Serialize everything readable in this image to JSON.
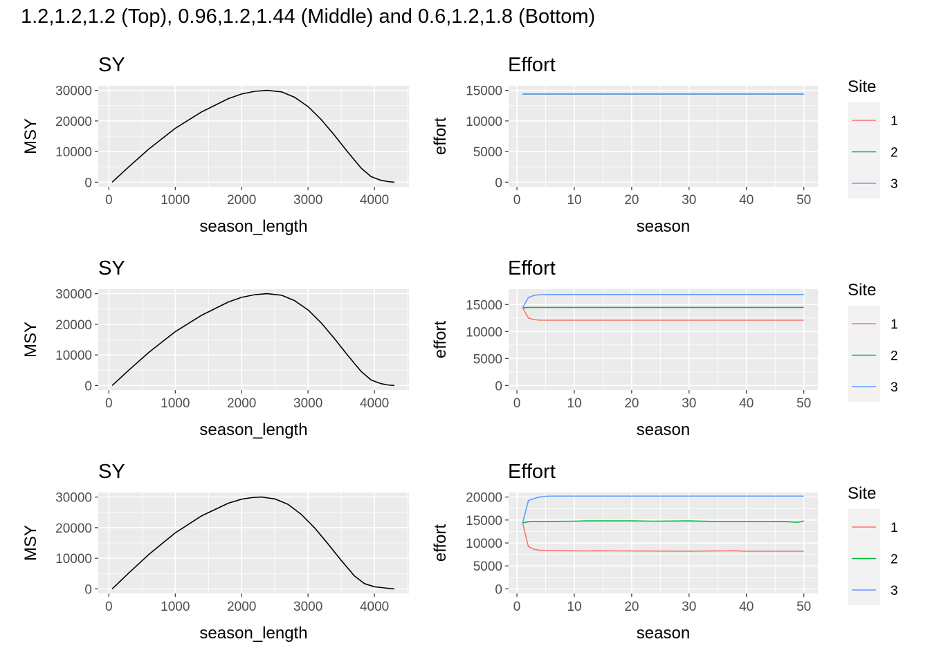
{
  "page_title": "1.2,1.2,1.2 (Top), 0.96,1.2,1.44 (Middle) and 0.6,1.2,1.8 (Bottom)",
  "colors": {
    "panel_bg": "#ebebeb",
    "grid": "#ffffff",
    "tick": "#333333",
    "curve": "#000000",
    "site_1": "#f8766d",
    "site_2": "#00ba38",
    "site_3": "#619cff",
    "legend_bg": "#f2f2f2"
  },
  "chart_data": [
    {
      "type": "line",
      "row": "top",
      "title": "SY",
      "xlabel": "season_length",
      "ylabel": "MSY",
      "xlim": [
        -160,
        4520
      ],
      "ylim": [
        -1500,
        31500
      ],
      "xticks": [
        0,
        1000,
        2000,
        3000,
        4000
      ],
      "yticks": [
        0,
        10000,
        20000,
        30000
      ],
      "x": [
        50,
        300,
        600,
        1000,
        1400,
        1800,
        2000,
        2200,
        2380,
        2600,
        2800,
        3000,
        3200,
        3400,
        3600,
        3800,
        3950,
        4100,
        4200,
        4300
      ],
      "y": [
        0,
        5000,
        10800,
        17600,
        23000,
        27300,
        28800,
        29700,
        30000,
        29500,
        27700,
        24700,
        20400,
        15300,
        9800,
        4600,
        1800,
        600,
        200,
        0
      ]
    },
    {
      "type": "line",
      "row": "top",
      "title": "Effort",
      "xlabel": "season",
      "ylabel": "effort",
      "xlim": [
        -1.45,
        52.45
      ],
      "ylim": [
        -750,
        15750
      ],
      "xticks": [
        0,
        10,
        20,
        30,
        40,
        50
      ],
      "yticks": [
        0,
        5000,
        10000,
        15000
      ],
      "legend": {
        "title": "Site",
        "entries": [
          "1",
          "2",
          "3"
        ]
      },
      "series": [
        {
          "name": "1",
          "x": [
            1,
            50
          ],
          "y": [
            14400,
            14400
          ]
        },
        {
          "name": "2",
          "x": [
            1,
            50
          ],
          "y": [
            14400,
            14400
          ]
        },
        {
          "name": "3",
          "x": [
            1,
            50
          ],
          "y": [
            14400,
            14400
          ]
        }
      ]
    },
    {
      "type": "line",
      "row": "middle",
      "title": "SY",
      "xlabel": "season_length",
      "ylabel": "MSY",
      "xlim": [
        -160,
        4520
      ],
      "ylim": [
        -1500,
        31500
      ],
      "xticks": [
        0,
        1000,
        2000,
        3000,
        4000
      ],
      "yticks": [
        0,
        10000,
        20000,
        30000
      ],
      "x": [
        50,
        300,
        600,
        1000,
        1400,
        1800,
        2000,
        2200,
        2380,
        2600,
        2800,
        3000,
        3200,
        3400,
        3600,
        3800,
        3950,
        4100,
        4200,
        4300
      ],
      "y": [
        0,
        5000,
        10800,
        17600,
        23000,
        27300,
        28800,
        29700,
        30000,
        29500,
        27700,
        24700,
        20400,
        15300,
        9800,
        4600,
        1800,
        600,
        200,
        0
      ]
    },
    {
      "type": "line",
      "row": "middle",
      "title": "Effort",
      "xlabel": "season",
      "ylabel": "effort",
      "xlim": [
        -1.45,
        52.45
      ],
      "ylim": [
        -850,
        17850
      ],
      "xticks": [
        0,
        10,
        20,
        30,
        40,
        50
      ],
      "yticks": [
        0,
        5000,
        10000,
        15000
      ],
      "legend": {
        "title": "Site",
        "entries": [
          "1",
          "2",
          "3"
        ]
      },
      "series": [
        {
          "name": "1",
          "x": [
            1,
            2,
            3,
            4,
            6,
            50
          ],
          "y": [
            14400,
            12500,
            12200,
            12100,
            12100,
            12100
          ]
        },
        {
          "name": "2",
          "x": [
            1,
            2,
            3,
            50
          ],
          "y": [
            14400,
            14450,
            14450,
            14450
          ]
        },
        {
          "name": "3",
          "x": [
            1,
            2,
            3,
            4,
            6,
            50
          ],
          "y": [
            14400,
            16300,
            16700,
            16800,
            16850,
            16850
          ]
        }
      ]
    },
    {
      "type": "line",
      "row": "bottom",
      "title": "SY",
      "xlabel": "season_length",
      "ylabel": "MSY",
      "xlim": [
        -160,
        4520
      ],
      "ylim": [
        -1500,
        31500
      ],
      "xticks": [
        0,
        1000,
        2000,
        3000,
        4000
      ],
      "yticks": [
        0,
        10000,
        20000,
        30000
      ],
      "x": [
        50,
        300,
        600,
        1000,
        1400,
        1800,
        2000,
        2150,
        2300,
        2500,
        2700,
        2900,
        3100,
        3300,
        3500,
        3700,
        3850,
        4000,
        4150,
        4300
      ],
      "y": [
        0,
        5200,
        11200,
        18300,
        23900,
        28000,
        29300,
        29800,
        30000,
        29400,
        27600,
        24300,
        19900,
        14700,
        9300,
        4200,
        1700,
        700,
        300,
        0
      ]
    },
    {
      "type": "line",
      "row": "bottom",
      "title": "Effort",
      "xlabel": "season",
      "ylabel": "effort",
      "xlim": [
        -1.45,
        52.45
      ],
      "ylim": [
        -1000,
        21000
      ],
      "xticks": [
        0,
        10,
        20,
        30,
        40,
        50
      ],
      "yticks": [
        0,
        5000,
        10000,
        15000,
        20000
      ],
      "legend": {
        "title": "Site",
        "entries": [
          "1",
          "2",
          "3"
        ]
      },
      "series": [
        {
          "name": "1",
          "x": [
            1,
            2,
            3,
            4,
            6,
            8,
            10,
            12,
            14,
            20,
            30,
            38,
            40,
            50
          ],
          "y": [
            14400,
            9200,
            8600,
            8400,
            8350,
            8300,
            8300,
            8250,
            8300,
            8250,
            8200,
            8300,
            8200,
            8200
          ]
        },
        {
          "name": "2",
          "x": [
            1,
            2,
            3,
            6,
            10,
            12,
            20,
            24,
            30,
            34,
            40,
            46,
            49,
            50
          ],
          "y": [
            14400,
            14600,
            14700,
            14700,
            14750,
            14800,
            14800,
            14750,
            14800,
            14700,
            14650,
            14700,
            14500,
            14800
          ]
        },
        {
          "name": "3",
          "x": [
            1,
            2,
            3,
            4,
            5,
            6,
            50
          ],
          "y": [
            14400,
            19200,
            19700,
            20000,
            20150,
            20200,
            20200
          ]
        }
      ]
    }
  ]
}
